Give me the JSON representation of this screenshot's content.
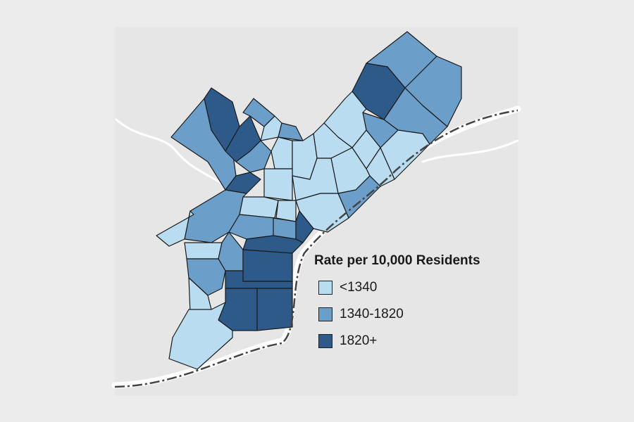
{
  "legend": {
    "title": "Rate per 10,000 Residents",
    "items": [
      {
        "label": "<1340",
        "color": "#b9dcf1"
      },
      {
        "label": "1340-1820",
        "color": "#6b9ec9"
      },
      {
        "label": "1820+",
        "color": "#2d5a89"
      }
    ]
  },
  "colors": {
    "background": "#ececec",
    "basemap": "#e6e6e6",
    "water": "#ffffff",
    "boundary_line": "#444444"
  }
}
